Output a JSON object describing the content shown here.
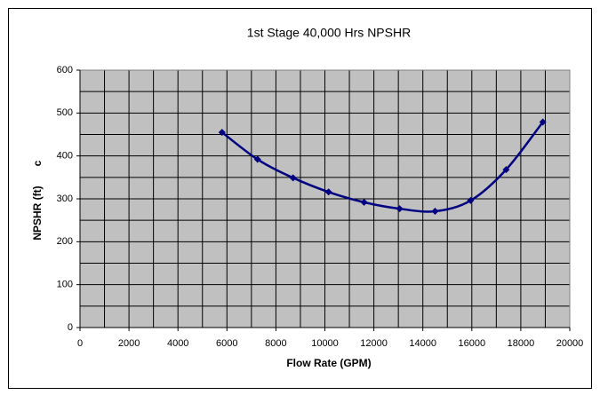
{
  "chart_data": {
    "type": "line",
    "title": "1st Stage 40,000 Hrs NPSHR",
    "x_label": "Flow Rate (GPM)",
    "y_label": "NPSHR (ft)",
    "annotation": "c",
    "x": [
      5800,
      7250,
      8700,
      10150,
      11600,
      13050,
      14500,
      15950,
      17400,
      18900
    ],
    "series": [
      {
        "name": "NPSHR",
        "color": "#000080",
        "values": [
          455,
          392,
          349,
          316,
          292,
          277,
          271,
          296,
          368,
          479
        ]
      }
    ],
    "xlim": [
      0,
      20000
    ],
    "xticks": [
      0,
      2000,
      4000,
      6000,
      8000,
      10000,
      12000,
      14000,
      16000,
      18000,
      20000
    ],
    "ylim": [
      0,
      600
    ],
    "yticks": [
      0,
      100,
      200,
      300,
      400,
      500,
      600
    ],
    "x_minor_step": 1000,
    "y_minor_step": 50,
    "grid": true,
    "plot_background": "#c0c0c0"
  }
}
